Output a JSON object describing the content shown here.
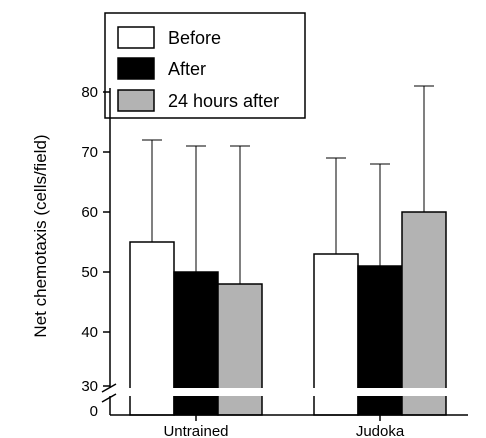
{
  "chart_data": {
    "type": "bar",
    "ylabel": "Net chemotaxis (cells/field)",
    "categories": [
      "Untrained",
      "Judoka"
    ],
    "series": [
      {
        "name": "Before",
        "values": [
          55,
          53
        ],
        "error_upper": [
          72,
          69
        ],
        "color": "#ffffff"
      },
      {
        "name": "After",
        "values": [
          50,
          51
        ],
        "error_upper": [
          71,
          68
        ],
        "color": "#000000"
      },
      {
        "name": "24 hours after",
        "values": [
          48,
          60
        ],
        "error_upper": [
          71,
          81
        ],
        "color": "#b3b3b3"
      }
    ],
    "ylim": [
      30,
      80
    ],
    "yticks": [
      30,
      40,
      50,
      60,
      70,
      80
    ],
    "y_break": {
      "lower_tick": 0,
      "upper_tick": 30
    },
    "legend_position": "top-left",
    "grid": false
  }
}
